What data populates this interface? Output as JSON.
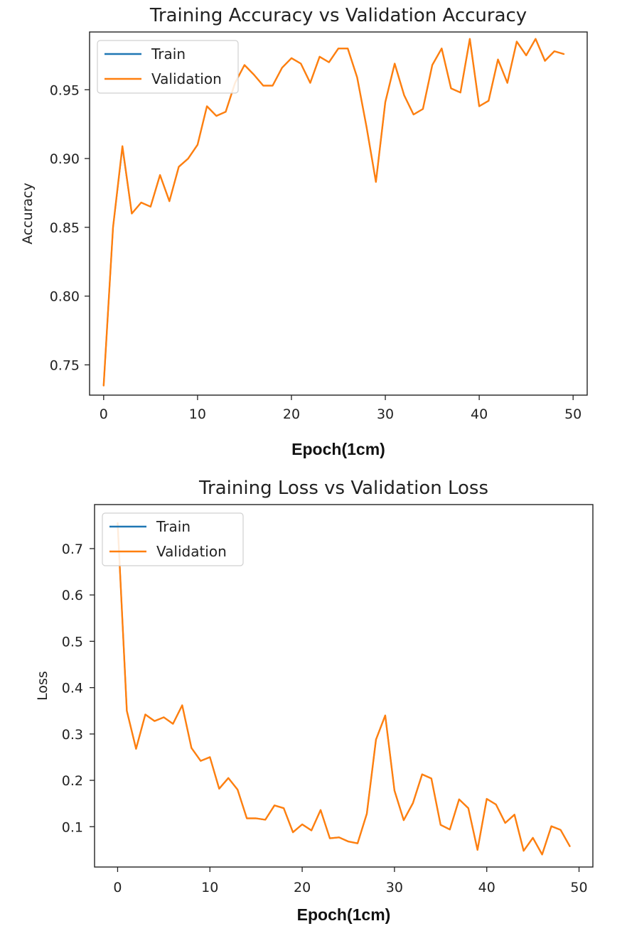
{
  "chart_data": [
    {
      "type": "line",
      "title": "Training Accuracy vs Validation Accuracy",
      "xlabel": "Epoch(1cm)",
      "ylabel": "Accuracy",
      "xlim": [
        -1.5,
        51.5
      ],
      "ylim": [
        0.728,
        0.992
      ],
      "xticks": [
        0,
        10,
        20,
        30,
        40,
        50
      ],
      "yticks": [
        0.75,
        0.8,
        0.85,
        0.9,
        0.95
      ],
      "ytick_labels": [
        "0.75",
        "0.80",
        "0.85",
        "0.90",
        "0.95"
      ],
      "legend_position": "upper-left",
      "grid": false,
      "x": [
        0,
        1,
        2,
        3,
        4,
        5,
        6,
        7,
        8,
        9,
        10,
        11,
        12,
        13,
        14,
        15,
        16,
        17,
        18,
        19,
        20,
        21,
        22,
        23,
        24,
        25,
        26,
        27,
        28,
        29,
        30,
        31,
        32,
        33,
        34,
        35,
        36,
        37,
        38,
        39,
        40,
        41,
        42,
        43,
        44,
        45,
        46,
        47,
        48,
        49
      ],
      "series": [
        {
          "name": "Train",
          "color": "#1f77b4",
          "values": [
            0.735,
            0.85,
            0.908,
            0.86,
            0.868,
            0.865,
            0.888,
            0.869,
            0.894,
            0.9,
            0.91,
            0.938,
            0.931,
            0.934,
            0.955,
            0.968,
            0.961,
            0.953,
            0.953,
            0.966,
            0.973,
            0.969,
            0.955,
            0.974,
            0.97,
            0.98,
            0.98,
            0.959,
            0.923,
            0.883,
            0.941,
            0.969,
            0.946,
            0.932,
            0.936,
            0.968,
            0.98,
            0.951,
            0.948,
            0.987,
            0.938,
            0.942,
            0.972,
            0.955,
            0.985,
            0.975,
            0.987,
            0.971,
            0.978,
            0.976
          ]
        },
        {
          "name": "Validation",
          "color": "#ff7f0e",
          "values": [
            0.735,
            0.85,
            0.909,
            0.86,
            0.868,
            0.865,
            0.888,
            0.869,
            0.894,
            0.9,
            0.91,
            0.938,
            0.931,
            0.934,
            0.955,
            0.968,
            0.961,
            0.953,
            0.953,
            0.966,
            0.973,
            0.969,
            0.955,
            0.974,
            0.97,
            0.98,
            0.98,
            0.959,
            0.923,
            0.883,
            0.941,
            0.969,
            0.946,
            0.932,
            0.936,
            0.968,
            0.98,
            0.951,
            0.948,
            0.987,
            0.938,
            0.942,
            0.972,
            0.955,
            0.985,
            0.975,
            0.987,
            0.971,
            0.978,
            0.976
          ]
        }
      ]
    },
    {
      "type": "line",
      "title": "Training Loss vs Validation Loss",
      "xlabel": "Epoch(1cm)",
      "ylabel": "Loss",
      "xlim": [
        -2.5,
        51.5
      ],
      "ylim": [
        0.013,
        0.795
      ],
      "xticks": [
        0,
        10,
        20,
        30,
        40,
        50
      ],
      "yticks": [
        0.1,
        0.2,
        0.3,
        0.4,
        0.5,
        0.6,
        0.7
      ],
      "ytick_labels": [
        "0.1",
        "0.2",
        "0.3",
        "0.4",
        "0.5",
        "0.6",
        "0.7"
      ],
      "legend_position": "upper-left",
      "grid": false,
      "x": [
        0,
        1,
        2,
        3,
        4,
        5,
        6,
        7,
        8,
        9,
        10,
        11,
        12,
        13,
        14,
        15,
        16,
        17,
        18,
        19,
        20,
        21,
        22,
        23,
        24,
        25,
        26,
        27,
        28,
        29,
        30,
        31,
        32,
        33,
        34,
        35,
        36,
        37,
        38,
        39,
        40,
        41,
        42,
        43,
        44,
        45,
        46,
        47,
        48,
        49
      ],
      "series": [
        {
          "name": "Train",
          "color": "#1f77b4",
          "values": [
            0.755,
            0.35,
            0.268,
            0.342,
            0.328,
            0.336,
            0.322,
            0.362,
            0.27,
            0.242,
            0.25,
            0.182,
            0.205,
            0.18,
            0.118,
            0.118,
            0.115,
            0.146,
            0.14,
            0.088,
            0.105,
            0.092,
            0.136,
            0.075,
            0.077,
            0.068,
            0.064,
            0.128,
            0.288,
            0.34,
            0.178,
            0.114,
            0.151,
            0.213,
            0.204,
            0.104,
            0.094,
            0.159,
            0.14,
            0.05,
            0.16,
            0.148,
            0.108,
            0.126,
            0.048,
            0.076,
            0.04,
            0.101,
            0.093,
            0.058
          ]
        },
        {
          "name": "Validation",
          "color": "#ff7f0e",
          "values": [
            0.755,
            0.35,
            0.268,
            0.342,
            0.328,
            0.336,
            0.322,
            0.362,
            0.27,
            0.242,
            0.25,
            0.182,
            0.205,
            0.18,
            0.118,
            0.118,
            0.115,
            0.146,
            0.14,
            0.088,
            0.105,
            0.092,
            0.136,
            0.075,
            0.077,
            0.068,
            0.064,
            0.128,
            0.288,
            0.34,
            0.178,
            0.114,
            0.151,
            0.213,
            0.204,
            0.104,
            0.094,
            0.159,
            0.14,
            0.05,
            0.16,
            0.148,
            0.108,
            0.126,
            0.048,
            0.076,
            0.04,
            0.101,
            0.093,
            0.058
          ]
        }
      ]
    }
  ]
}
